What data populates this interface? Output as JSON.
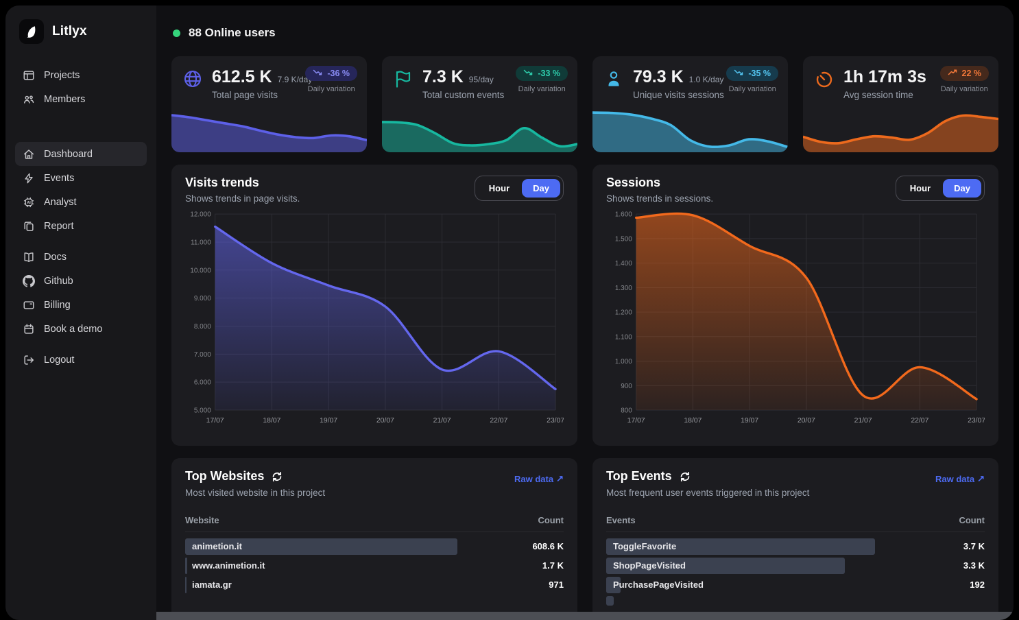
{
  "app": {
    "name": "Litlyx"
  },
  "header": {
    "online_users": "88 Online users",
    "online_color": "#35d47c"
  },
  "sidebar": {
    "top": [
      {
        "label": "Projects",
        "icon": "projects-icon"
      },
      {
        "label": "Members",
        "icon": "members-icon"
      }
    ],
    "menu": [
      {
        "label": "Dashboard",
        "icon": "dashboard-icon",
        "active": true
      },
      {
        "label": "Events",
        "icon": "events-icon"
      },
      {
        "label": "Analyst",
        "icon": "analyst-icon"
      },
      {
        "label": "Report",
        "icon": "report-icon"
      }
    ],
    "secondary": [
      {
        "label": "Docs",
        "icon": "docs-icon"
      },
      {
        "label": "Github",
        "icon": "github-icon"
      },
      {
        "label": "Billing",
        "icon": "billing-icon"
      },
      {
        "label": "Book a demo",
        "icon": "calendar-icon"
      }
    ],
    "footer": [
      {
        "label": "Logout",
        "icon": "logout-icon"
      }
    ]
  },
  "stat_cards": [
    {
      "icon": "globe-icon",
      "accent": "#5d60e8",
      "value": "612.5 K",
      "rate": "7.9 K/day",
      "label": "Total page visits",
      "badge": {
        "text": "-36 %",
        "direction": "down",
        "bg": "#26265a",
        "color": "#8a8cf4"
      },
      "variation_label": "Daily variation",
      "spark": [
        78,
        73,
        66,
        59,
        52,
        42,
        33,
        27,
        25,
        31,
        29,
        20
      ]
    },
    {
      "icon": "flag-icon",
      "accent": "#17b8a0",
      "value": "7.3 K",
      "rate": "95/day",
      "label": "Total custom events",
      "badge": {
        "text": "-33 %",
        "direction": "down",
        "bg": "#103b38",
        "color": "#2fd0ae"
      },
      "variation_label": "Daily variation",
      "spark": [
        62,
        61,
        55,
        36,
        13,
        8,
        11,
        20,
        48,
        26,
        6,
        11
      ]
    },
    {
      "icon": "user-icon",
      "accent": "#44b9e8",
      "value": "79.3 K",
      "rate": "1.0 K/day",
      "label": "Unique visits sessions",
      "badge": {
        "text": "-35 %",
        "direction": "down",
        "bg": "#163b4d",
        "color": "#54c5f0"
      },
      "variation_label": "Daily variation",
      "spark": [
        84,
        83,
        79,
        70,
        55,
        20,
        5,
        8,
        22,
        17,
        4
      ]
    },
    {
      "icon": "timer-icon",
      "accent": "#ed6a1d",
      "value": "1h 17m 3s",
      "rate": "",
      "label": "Avg session time",
      "badge": {
        "text": "22 %",
        "direction": "up",
        "bg": "#45291c",
        "color": "#f5793a"
      },
      "variation_label": "Daily variation",
      "spark": [
        28,
        16,
        13,
        22,
        29,
        26,
        21,
        36,
        64,
        77,
        74,
        69
      ]
    }
  ],
  "chart_data": [
    {
      "type": "area",
      "title": "Visits trends",
      "subtitle": "Shows trends in page visits.",
      "toggle": {
        "options": [
          "Hour",
          "Day"
        ],
        "selected": "Day"
      },
      "x": [
        "17/07",
        "18/07",
        "19/07",
        "20/07",
        "21/07",
        "22/07",
        "23/07"
      ],
      "values": [
        11550,
        10250,
        9450,
        8700,
        6450,
        7100,
        5750
      ],
      "ylim": [
        5000,
        12000
      ],
      "ytick_step": 1000,
      "ytick_labels": [
        "5.000",
        "6.000",
        "7.000",
        "8.000",
        "9.000",
        "10.000",
        "11.000",
        "12.000"
      ],
      "color": "#6467ee",
      "grid": true,
      "legend": "none"
    },
    {
      "type": "area",
      "title": "Sessions",
      "subtitle": "Shows trends in sessions.",
      "toggle": {
        "options": [
          "Hour",
          "Day"
        ],
        "selected": "Day"
      },
      "x": [
        "17/07",
        "18/07",
        "19/07",
        "20/07",
        "21/07",
        "22/07",
        "23/07"
      ],
      "values": [
        1585,
        1595,
        1470,
        1340,
        860,
        975,
        845
      ],
      "ylim": [
        800,
        1600
      ],
      "ytick_step": 100,
      "ytick_labels": [
        "800",
        "900",
        "1.000",
        "1.100",
        "1.200",
        "1.300",
        "1.400",
        "1.500",
        "1.600"
      ],
      "color": "#f2691c",
      "grid": true,
      "legend": "none"
    }
  ],
  "tables": [
    {
      "title": "Top Websites",
      "subtitle": "Most visited website in this project",
      "link_label": "Raw data",
      "link_arrow": "↗",
      "columns": [
        "Website",
        "Count"
      ],
      "rows": [
        {
          "name": "animetion.it",
          "count": "608.6 K",
          "bar_pct": 72
        },
        {
          "name": "www.animetion.it",
          "count": "1.7 K",
          "bar_pct": 0.6
        },
        {
          "name": "iamata.gr",
          "count": "971",
          "bar_pct": 0.35
        }
      ],
      "partial_row_bar_pct": null
    },
    {
      "title": "Top Events",
      "subtitle": "Most frequent user events triggered in this project",
      "link_label": "Raw data",
      "link_arrow": "↗",
      "columns": [
        "Events",
        "Count"
      ],
      "rows": [
        {
          "name": "ToggleFavorite",
          "count": "3.7 K",
          "bar_pct": 71
        },
        {
          "name": "ShopPageVisited",
          "count": "3.3 K",
          "bar_pct": 63
        },
        {
          "name": "PurchasePageVisited",
          "count": "192",
          "bar_pct": 3.8
        }
      ],
      "partial_row_bar_pct": 2
    }
  ]
}
